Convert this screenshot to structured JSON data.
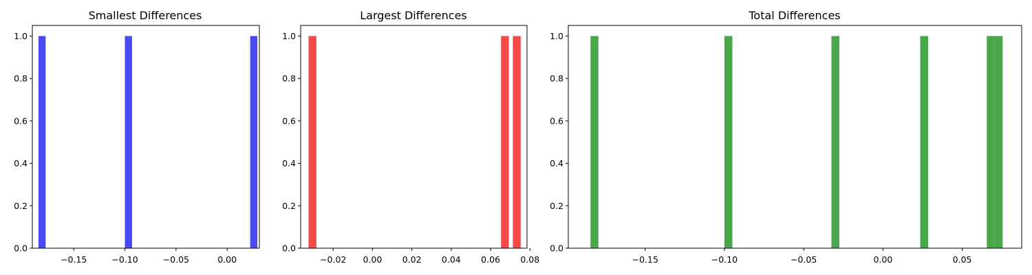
{
  "chart_data": [
    {
      "type": "bar",
      "title": "Smallest Differences",
      "color": "#4a4af5",
      "xlim": [
        -0.1905,
        0.0315
      ],
      "ylim": [
        0,
        1.05
      ],
      "bins": [
        {
          "x0": -0.1845,
          "x1": -0.1775,
          "count": 1
        },
        {
          "x0": -0.1,
          "x1": -0.093,
          "count": 1
        },
        {
          "x0": 0.0225,
          "x1": 0.0295,
          "count": 1
        }
      ],
      "xticks": [
        -0.15,
        -0.1,
        -0.05,
        0.0
      ],
      "xtick_labels": [
        "−0.15",
        "−0.10",
        "−0.05",
        "0.00"
      ],
      "yticks": [
        0.0,
        0.2,
        0.4,
        0.6,
        0.8,
        1.0
      ],
      "ytick_labels": [
        "0.0",
        "0.2",
        "0.4",
        "0.6",
        "0.8",
        "1.0"
      ]
    },
    {
      "type": "bar",
      "title": "Largest Differences",
      "color": "#f54a4a",
      "xlim": [
        -0.0365,
        0.0785
      ],
      "ylim": [
        0,
        1.05
      ],
      "bins": [
        {
          "x0": -0.0325,
          "x1": -0.0285,
          "count": 1
        },
        {
          "x0": 0.0653,
          "x1": 0.0693,
          "count": 1
        },
        {
          "x0": 0.0713,
          "x1": 0.0753,
          "count": 1
        }
      ],
      "xticks": [
        -0.02,
        0.0,
        0.02,
        0.04,
        0.06,
        0.08
      ],
      "xtick_labels": [
        "−0.02",
        "0.00",
        "0.02",
        "0.04",
        "0.06",
        "0.08"
      ],
      "yticks": [
        0.0,
        0.2,
        0.4,
        0.6,
        0.8,
        1.0
      ],
      "ytick_labels": [
        "0.0",
        "0.2",
        "0.4",
        "0.6",
        "0.8",
        "1.0"
      ]
    },
    {
      "type": "bar",
      "title": "Total Differences",
      "color": "#4aa64a",
      "xlim": [
        -0.1985,
        0.0875
      ],
      "ylim": [
        0,
        1.05
      ],
      "bins": [
        {
          "x0": -0.1845,
          "x1": -0.1795,
          "count": 1
        },
        {
          "x0": -0.1,
          "x1": -0.095,
          "count": 1
        },
        {
          "x0": -0.0325,
          "x1": -0.0275,
          "count": 1
        },
        {
          "x0": 0.0235,
          "x1": 0.0285,
          "count": 1
        },
        {
          "x0": 0.0655,
          "x1": 0.0705,
          "count": 1
        },
        {
          "x0": 0.0705,
          "x1": 0.0755,
          "count": 1
        }
      ],
      "xticks": [
        -0.15,
        -0.1,
        -0.05,
        0.0,
        0.05
      ],
      "xtick_labels": [
        "−0.15",
        "−0.10",
        "−0.05",
        "0.00",
        "0.05"
      ],
      "yticks": [
        0.0,
        0.2,
        0.4,
        0.6,
        0.8,
        1.0
      ],
      "ytick_labels": [
        "0.0",
        "0.2",
        "0.4",
        "0.6",
        "0.8",
        "1.0"
      ]
    }
  ]
}
